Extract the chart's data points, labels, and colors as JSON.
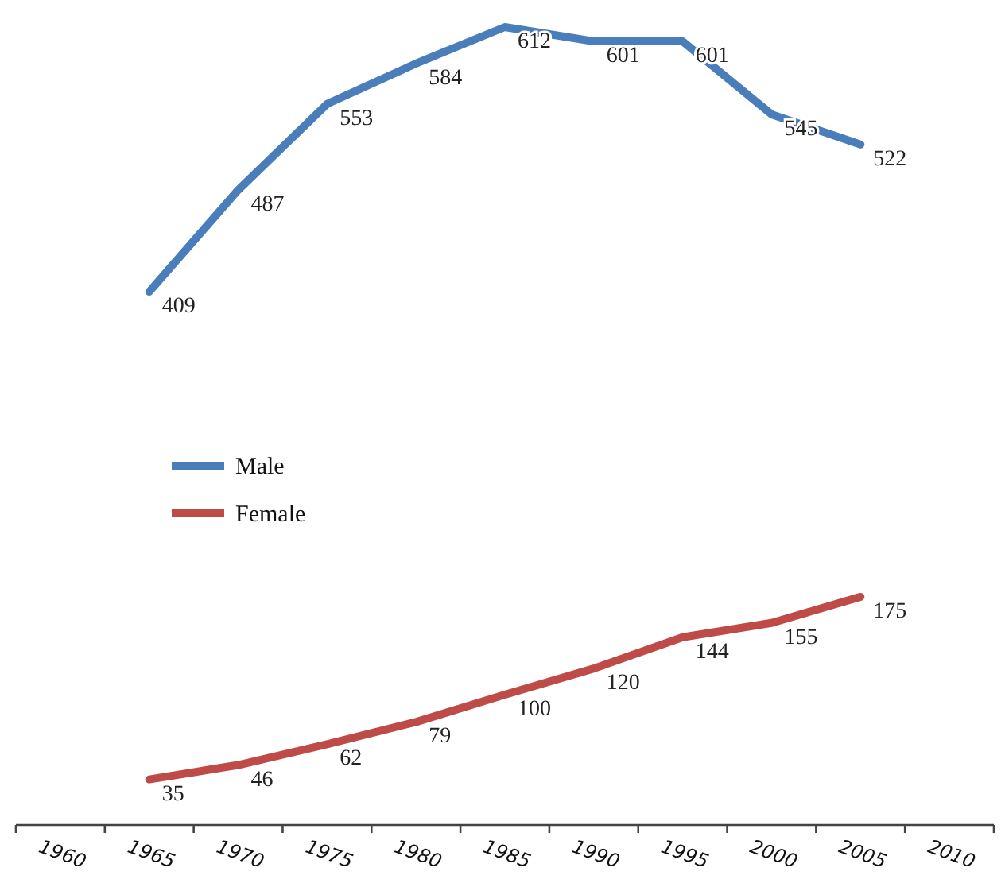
{
  "chart_data": {
    "type": "line",
    "categories": [
      "1960",
      "1965",
      "1970",
      "1975",
      "1980",
      "1985",
      "1990",
      "1995",
      "2000",
      "2005",
      "2010"
    ],
    "series": [
      {
        "name": "Male",
        "color": "#4a7ebb",
        "values": [
          null,
          409,
          487,
          553,
          584,
          612,
          601,
          601,
          545,
          522,
          null
        ]
      },
      {
        "name": "Female",
        "color": "#be4b48",
        "values": [
          null,
          35,
          46,
          62,
          79,
          100,
          120,
          144,
          155,
          175,
          null
        ]
      }
    ],
    "tick_labels": "x",
    "data_labels": true,
    "legend": "left",
    "marker": "none",
    "line_style": "solid"
  }
}
